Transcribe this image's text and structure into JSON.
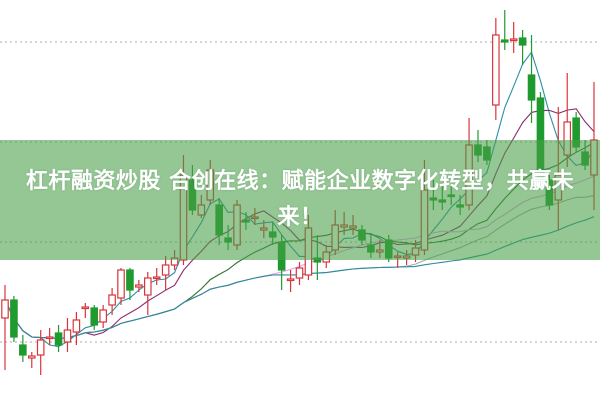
{
  "headline": "杠杆融资炒股 合创在线：赋能企业数字化转型，共赢未来！",
  "colors": {
    "up": "#d9343a",
    "down": "#1f9a2f",
    "grid": "#aaaaaa",
    "banner": "#8fc88c",
    "ma": [
      "#2a8fa8",
      "#8b2a6b",
      "#2e6e2e",
      "#e7a0e3",
      "#a8a8a8",
      "#2a8a9a"
    ]
  },
  "chart_data": {
    "type": "candlestick",
    "title": "",
    "axes_visible": false,
    "grid": "horizontal-dotted",
    "gridlines": [
      58,
      158,
      258,
      358
    ],
    "ylim": [
      0,
      400
    ],
    "ohlc_format": [
      "open",
      "close",
      "high",
      "low"
    ],
    "candles": [
      [
        82,
        100,
        115,
        30
      ],
      [
        100,
        63,
        104,
        58
      ],
      [
        55,
        45,
        65,
        38
      ],
      [
        42,
        44,
        48,
        32
      ],
      [
        45,
        60,
        70,
        25
      ],
      [
        62,
        63,
        72,
        55
      ],
      [
        67,
        55,
        75,
        48
      ],
      [
        58,
        70,
        82,
        48
      ],
      [
        68,
        80,
        88,
        55
      ],
      [
        92,
        93,
        97,
        82
      ],
      [
        92,
        75,
        95,
        70
      ],
      [
        78,
        90,
        95,
        72
      ],
      [
        95,
        105,
        112,
        85
      ],
      [
        102,
        130,
        132,
        95
      ],
      [
        130,
        110,
        132,
        100
      ],
      [
        113,
        115,
        120,
        108
      ],
      [
        105,
        122,
        128,
        85
      ],
      [
        122,
        123,
        132,
        115
      ],
      [
        125,
        135,
        144,
        110
      ],
      [
        135,
        142,
        150,
        130
      ],
      [
        140,
        225,
        245,
        135
      ],
      [
        220,
        190,
        235,
        185
      ],
      [
        185,
        195,
        205,
        182
      ],
      [
        200,
        230,
        240,
        195
      ],
      [
        195,
        165,
        202,
        155
      ],
      [
        162,
        158,
        175,
        150
      ],
      [
        155,
        195,
        200,
        150
      ],
      [
        180,
        178,
        188,
        170
      ],
      [
        182,
        183,
        192,
        175
      ],
      [
        170,
        172,
        180,
        162
      ],
      [
        168,
        163,
        178,
        155
      ],
      [
        158,
        130,
        165,
        110
      ],
      [
        120,
        121,
        130,
        108
      ],
      [
        122,
        132,
        138,
        115
      ],
      [
        125,
        172,
        185,
        120
      ],
      [
        142,
        138,
        165,
        120
      ],
      [
        138,
        148,
        155,
        132
      ],
      [
        150,
        175,
        190,
        145
      ],
      [
        173,
        175,
        188,
        165
      ],
      [
        172,
        174,
        185,
        165
      ],
      [
        170,
        160,
        175,
        155
      ],
      [
        155,
        148,
        165,
        142
      ],
      [
        148,
        150,
        160,
        142
      ],
      [
        160,
        142,
        165,
        138
      ],
      [
        143,
        144,
        148,
        132
      ],
      [
        142,
        144,
        150,
        135
      ],
      [
        145,
        152,
        160,
        138
      ],
      [
        150,
        210,
        240,
        145
      ],
      [
        202,
        200,
        220,
        190
      ],
      [
        200,
        198,
        215,
        190
      ],
      [
        205,
        204,
        215,
        195
      ],
      [
        195,
        193,
        205,
        185
      ],
      [
        195,
        255,
        282,
        190
      ],
      [
        255,
        245,
        270,
        238
      ],
      [
        253,
        240,
        260,
        235
      ],
      [
        295,
        365,
        382,
        280
      ],
      [
        360,
        358,
        390,
        350
      ],
      [
        360,
        361,
        378,
        347
      ],
      [
        362,
        355,
        370,
        335
      ],
      [
        325,
        300,
        365,
        277
      ],
      [
        302,
        222,
        308,
        220
      ],
      [
        220,
        195,
        225,
        190
      ],
      [
        200,
        225,
        293,
        170
      ],
      [
        245,
        278,
        327,
        233
      ],
      [
        282,
        253,
        288,
        248
      ],
      [
        248,
        235,
        260,
        230
      ],
      [
        225,
        260,
        318,
        190
      ]
    ],
    "moving_averages": [
      5,
      10,
      20,
      30,
      45,
      60
    ]
  }
}
